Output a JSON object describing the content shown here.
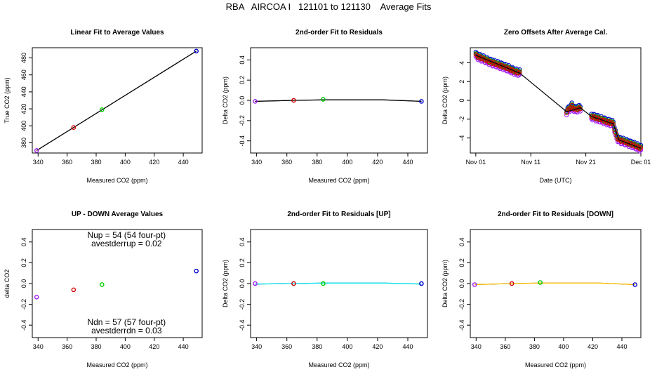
{
  "page_title": "RBA   AIRCOA I   121101 to 121130    Average Fits",
  "colors": {
    "purple": "#a020f0",
    "red": "#cc0000",
    "green": "#00cc00",
    "blue": "#0000cc",
    "cyan": "#00e5ee",
    "gold": "#ffc000",
    "black": "#000000"
  },
  "chart_data": [
    {
      "type": "scatter",
      "title": "Linear Fit to Average Values",
      "xlabel": "Measured CO2 (ppm)",
      "ylabel": "True CO2 (ppm)",
      "xlim": [
        336,
        453
      ],
      "ylim": [
        368,
        492
      ],
      "xticks": [
        340,
        360,
        380,
        400,
        420,
        440
      ],
      "yticks": [
        380,
        400,
        420,
        440,
        460,
        480
      ],
      "points": [
        {
          "x": 339,
          "y": 371,
          "color": "purple"
        },
        {
          "x": 364.5,
          "y": 398,
          "color": "red"
        },
        {
          "x": 384,
          "y": 419,
          "color": "green"
        },
        {
          "x": 449,
          "y": 488,
          "color": "blue"
        }
      ],
      "fit_line": {
        "x": [
          339,
          449
        ],
        "y": [
          371,
          488
        ],
        "color": "black"
      }
    },
    {
      "type": "scatter",
      "title": "2nd-order Fit to Residuals",
      "xlabel": "Measured CO2 (ppm)",
      "ylabel": "Delta CO2 (ppm)",
      "xlim": [
        336,
        453
      ],
      "ylim": [
        -0.52,
        0.52
      ],
      "xticks": [
        340,
        360,
        380,
        400,
        420,
        440
      ],
      "yticks": [
        -0.4,
        -0.2,
        0.0,
        0.2,
        0.4
      ],
      "yticklabels": [
        "-0.4",
        "-0.2",
        "0.0",
        "0.2",
        "0.4"
      ],
      "points": [
        {
          "x": 339,
          "y": -0.01,
          "color": "purple"
        },
        {
          "x": 364.5,
          "y": 0.0,
          "color": "red"
        },
        {
          "x": 384,
          "y": 0.01,
          "color": "green"
        },
        {
          "x": 449,
          "y": -0.01,
          "color": "blue"
        }
      ],
      "fit_curve": {
        "x": [
          339,
          364.5,
          384,
          424,
          449
        ],
        "y": [
          -0.01,
          0.0,
          0.005,
          0.005,
          -0.01
        ],
        "color": "black"
      }
    },
    {
      "type": "line",
      "title": "Zero Offsets After Average Cal.",
      "xlabel": "Date (UTC)",
      "ylabel": "Delta CO2 (ppm)",
      "xlim": [
        0,
        31
      ],
      "ylim": [
        -5.6,
        5.6
      ],
      "xticks": [
        1,
        11,
        21,
        31
      ],
      "xticklabels": [
        "Nov 01",
        "Nov 11",
        "Nov 21",
        "Dec 01"
      ],
      "yticks": [
        -4,
        -2,
        0,
        2,
        4
      ],
      "series": [
        {
          "color": "purple",
          "offset": -0.25
        },
        {
          "color": "blue",
          "offset": 0.25
        },
        {
          "color": "green",
          "offset": 0.08
        },
        {
          "color": "red",
          "offset": 0
        }
      ],
      "segments": [
        {
          "x": [
            1,
            2,
            4,
            6,
            8,
            9
          ],
          "y": [
            4.8,
            4.5,
            4.0,
            3.6,
            3.1,
            2.9
          ]
        },
        {
          "x": [
            17.5,
            18,
            18.5,
            19,
            19.5,
            20
          ],
          "y": [
            -1.2,
            -0.9,
            -0.6,
            -1.0,
            -0.9,
            -0.8
          ]
        },
        {
          "x": [
            22,
            24,
            26,
            26.5,
            27,
            29,
            31
          ],
          "y": [
            -1.7,
            -2.1,
            -2.5,
            -3.8,
            -4.2,
            -4.6,
            -5.1
          ]
        }
      ],
      "trend": {
        "x": [
          1,
          9,
          17.5,
          20,
          22,
          26,
          27,
          31
        ],
        "y": [
          4.8,
          2.9,
          -1.2,
          -0.8,
          -1.7,
          -2.5,
          -4.2,
          -5.1
        ]
      }
    },
    {
      "type": "scatter",
      "title": "UP - DOWN Average Values",
      "xlabel": "Measured CO2 (ppm)",
      "ylabel": "delta CO2",
      "xlim": [
        336,
        453
      ],
      "ylim": [
        -0.52,
        0.52
      ],
      "xticks": [
        340,
        360,
        380,
        400,
        420,
        440
      ],
      "yticks": [
        -0.4,
        -0.2,
        0.0,
        0.2,
        0.4
      ],
      "yticklabels": [
        "-0.4",
        "-0.2",
        "0.0",
        "0.2",
        "0.4"
      ],
      "points": [
        {
          "x": 339,
          "y": -0.13,
          "color": "purple"
        },
        {
          "x": 364.5,
          "y": -0.06,
          "color": "red"
        },
        {
          "x": 384,
          "y": -0.01,
          "color": "green"
        },
        {
          "x": 449,
          "y": 0.12,
          "color": "blue"
        }
      ],
      "annotations": {
        "nup": "Nup = 54 (54 four-pt)",
        "avestderrup": "avestderrup =  0.02",
        "ndn": "Ndn = 57 (57 four-pt)",
        "avestderrdn": "avestderrdn =  0.03"
      }
    },
    {
      "type": "scatter",
      "title": "2nd-order Fit to Residuals [UP]",
      "xlabel": "Measured CO2 (ppm)",
      "ylabel": "Delta CO2 (ppm)",
      "xlim": [
        336,
        453
      ],
      "ylim": [
        -0.52,
        0.52
      ],
      "xticks": [
        340,
        360,
        380,
        400,
        420,
        440
      ],
      "yticks": [
        -0.4,
        -0.2,
        0.0,
        0.2,
        0.4
      ],
      "yticklabels": [
        "-0.4",
        "-0.2",
        "0.0",
        "0.2",
        "0.4"
      ],
      "points": [
        {
          "x": 339,
          "y": 0.0,
          "color": "purple"
        },
        {
          "x": 364.5,
          "y": 0.0,
          "color": "red"
        },
        {
          "x": 384,
          "y": 0.0,
          "color": "green"
        },
        {
          "x": 449,
          "y": 0.0,
          "color": "blue"
        }
      ],
      "fit_curve": {
        "x": [
          339,
          364.5,
          384,
          424,
          449
        ],
        "y": [
          -0.005,
          0.0,
          0.005,
          0.005,
          -0.005
        ],
        "color": "cyan"
      }
    },
    {
      "type": "scatter",
      "title": "2nd-order Fit to Residuals [DOWN]",
      "xlabel": "Measured CO2 (ppm)",
      "ylabel": "Delta CO2 (ppm)",
      "xlim": [
        336,
        453
      ],
      "ylim": [
        -0.52,
        0.52
      ],
      "xticks": [
        340,
        360,
        380,
        400,
        420,
        440
      ],
      "yticks": [
        -0.4,
        -0.2,
        0.0,
        0.2,
        0.4
      ],
      "yticklabels": [
        "-0.4",
        "-0.2",
        "0.0",
        "0.2",
        "0.4"
      ],
      "points": [
        {
          "x": 339,
          "y": -0.01,
          "color": "purple"
        },
        {
          "x": 364.5,
          "y": 0.0,
          "color": "red"
        },
        {
          "x": 384,
          "y": 0.01,
          "color": "green"
        },
        {
          "x": 449,
          "y": -0.01,
          "color": "blue"
        }
      ],
      "fit_curve": {
        "x": [
          339,
          364.5,
          384,
          424,
          449
        ],
        "y": [
          -0.01,
          0.0,
          0.005,
          0.005,
          -0.01
        ],
        "color": "gold"
      }
    }
  ]
}
